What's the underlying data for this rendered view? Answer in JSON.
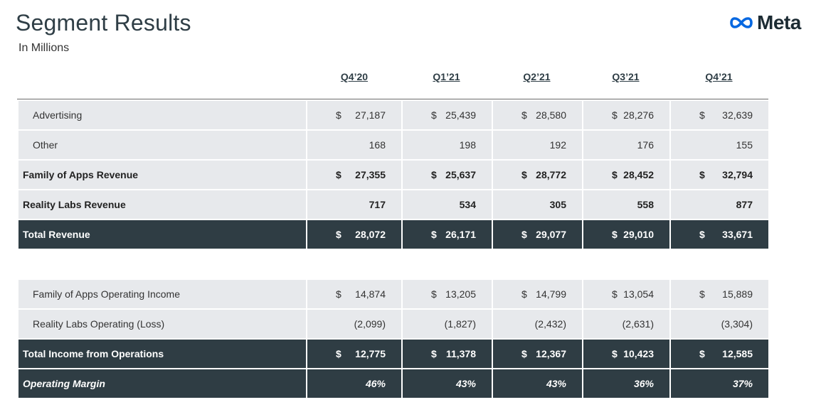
{
  "title": "Segment Results",
  "subtitle": "In Millions",
  "logo": {
    "text": "Meta",
    "icon": "meta-infinity-icon",
    "color": "#0668e1"
  },
  "columns": [
    "Q4’20",
    "Q1’21",
    "Q2’21",
    "Q3’21",
    "Q4’21"
  ],
  "colors": {
    "dark_row": "#2f3d44",
    "light_row": "#e7e9ec"
  },
  "rows": [
    {
      "label": "Advertising",
      "values": [
        "27,187",
        "25,439",
        "28,580",
        "28,276",
        "32,639"
      ],
      "currency": "$"
    },
    {
      "label": "Other",
      "values": [
        "168",
        "198",
        "192",
        "176",
        "155"
      ],
      "currency": ""
    },
    {
      "label": "Family of Apps Revenue",
      "values": [
        "27,355",
        "25,637",
        "28,772",
        "28,452",
        "32,794"
      ],
      "currency": "$"
    },
    {
      "label": "Reality Labs Revenue",
      "values": [
        "717",
        "534",
        "305",
        "558",
        "877"
      ],
      "currency": ""
    },
    {
      "label": "Total Revenue",
      "values": [
        "28,072",
        "26,171",
        "29,077",
        "29,010",
        "33,671"
      ],
      "currency": "$"
    },
    {
      "label": "Family of Apps Operating Income",
      "values": [
        "14,874",
        "13,205",
        "14,799",
        "13,054",
        "15,889"
      ],
      "currency": "$"
    },
    {
      "label": "Reality Labs Operating (Loss)",
      "values": [
        "(2,099)",
        "(1,827)",
        "(2,432)",
        "(2,631)",
        "(3,304)"
      ],
      "currency": ""
    },
    {
      "label": "Total Income from Operations",
      "values": [
        "12,775",
        "11,378",
        "12,367",
        "10,423",
        "12,585"
      ],
      "currency": "$"
    },
    {
      "label": "Operating Margin",
      "values": [
        "46%",
        "43%",
        "43%",
        "36%",
        "37%"
      ],
      "currency": ""
    }
  ]
}
